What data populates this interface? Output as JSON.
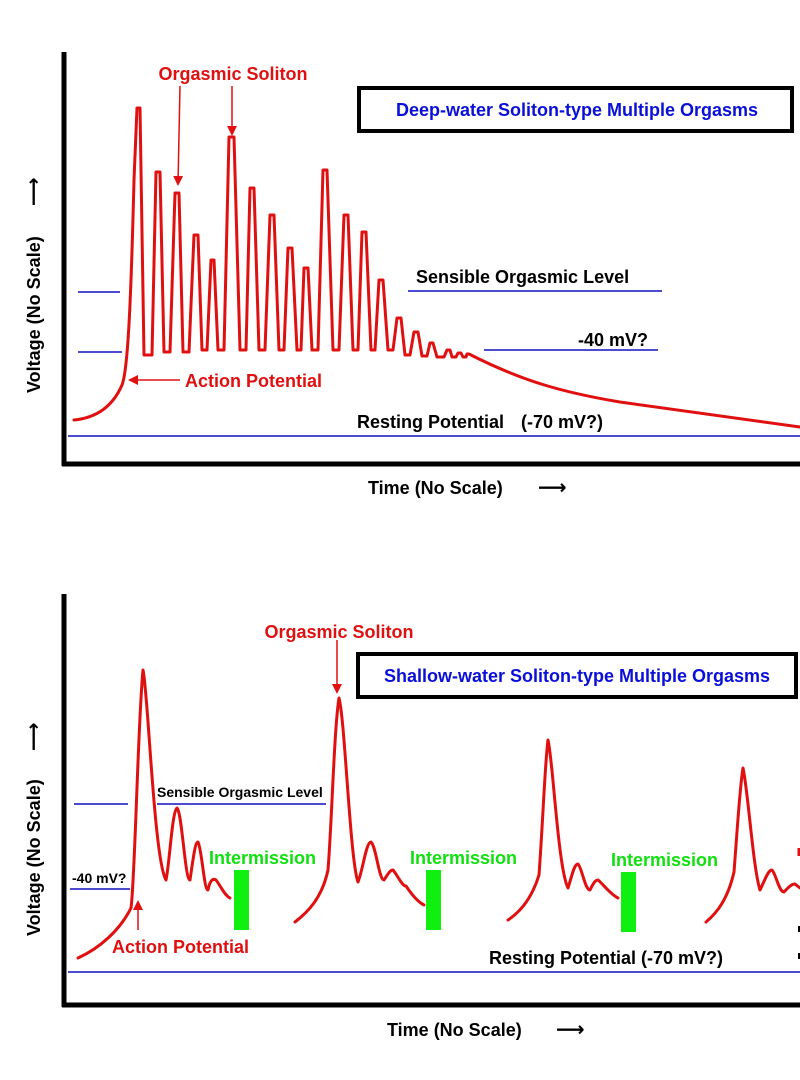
{
  "colors": {
    "curve": "#e01010",
    "reference_line": "#1010c0",
    "title_text": "#0a10d8",
    "intermission": "#10f010",
    "axis": "#000000",
    "label": "#000000"
  },
  "top_panel": {
    "title": "Deep-water Soliton-type Multiple Orgasms",
    "ylabel": "Voltage (No Scale)",
    "ylabel_arrow": "⟶",
    "xlabel": "Time (No Scale)",
    "xlabel_arrow": "⟶",
    "soliton_label": "Orgasmic Soliton",
    "action_potential_label": "Action Potential",
    "sensible_level_label": "Sensible Orgasmic Level",
    "threshold_label": "-40 mV?",
    "resting_label": "Resting Potential",
    "resting_value": "(-70 mV?)"
  },
  "bottom_panel": {
    "title": "Shallow-water Soliton-type Multiple Orgasms",
    "ylabel": "Voltage (No Scale)",
    "ylabel_arrow": "⟶",
    "xlabel": "Time (No Scale)",
    "xlabel_arrow": "⟶",
    "soliton_label": "Orgasmic Soliton",
    "action_potential_label": "Action Potential",
    "sensible_level_label": "Sensible Orgasmic Level",
    "threshold_label": "-40 mV?",
    "resting_label": "Resting Potential (-70 mV?)",
    "intermission_labels": [
      "Intermission",
      "Intermission",
      "Intermission"
    ]
  }
}
